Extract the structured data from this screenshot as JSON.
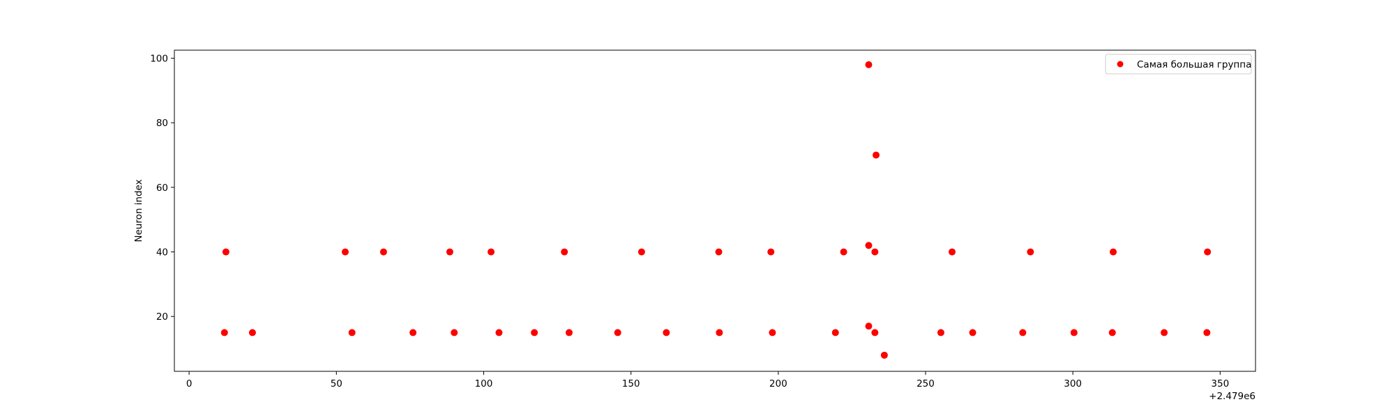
{
  "chart_data": {
    "type": "scatter",
    "title": "",
    "xlabel": "",
    "ylabel": "Neuron index",
    "x_offset_label": "+2.479e6",
    "xlim": [
      -5,
      362
    ],
    "ylim": [
      3,
      102.5
    ],
    "xticks": [
      0,
      50,
      100,
      150,
      200,
      250,
      300,
      350
    ],
    "yticks": [
      20,
      40,
      60,
      80,
      100
    ],
    "grid": false,
    "legend_position": "upper right",
    "series": [
      {
        "name": "Самая большая группа",
        "color": "#ff0000",
        "points": [
          {
            "x": 12,
            "y": 15
          },
          {
            "x": 12.5,
            "y": 40
          },
          {
            "x": 21.5,
            "y": 15
          },
          {
            "x": 53,
            "y": 40
          },
          {
            "x": 55.3,
            "y": 15
          },
          {
            "x": 66,
            "y": 40
          },
          {
            "x": 76,
            "y": 15
          },
          {
            "x": 88.5,
            "y": 40
          },
          {
            "x": 90,
            "y": 15
          },
          {
            "x": 102.5,
            "y": 40
          },
          {
            "x": 105.2,
            "y": 15
          },
          {
            "x": 117.2,
            "y": 15
          },
          {
            "x": 127.4,
            "y": 40
          },
          {
            "x": 129,
            "y": 15
          },
          {
            "x": 145.5,
            "y": 15
          },
          {
            "x": 153.6,
            "y": 40
          },
          {
            "x": 162,
            "y": 15
          },
          {
            "x": 179.8,
            "y": 40
          },
          {
            "x": 180,
            "y": 15
          },
          {
            "x": 197.5,
            "y": 40
          },
          {
            "x": 198,
            "y": 15
          },
          {
            "x": 219.4,
            "y": 15
          },
          {
            "x": 222.2,
            "y": 40
          },
          {
            "x": 230.7,
            "y": 98
          },
          {
            "x": 230.7,
            "y": 42
          },
          {
            "x": 230.7,
            "y": 17
          },
          {
            "x": 232.8,
            "y": 15
          },
          {
            "x": 232.8,
            "y": 40
          },
          {
            "x": 233.2,
            "y": 70
          },
          {
            "x": 236,
            "y": 8
          },
          {
            "x": 255.2,
            "y": 15
          },
          {
            "x": 259,
            "y": 40
          },
          {
            "x": 266,
            "y": 15
          },
          {
            "x": 283,
            "y": 15
          },
          {
            "x": 285.6,
            "y": 40
          },
          {
            "x": 300.4,
            "y": 15
          },
          {
            "x": 313.4,
            "y": 15
          },
          {
            "x": 313.7,
            "y": 40
          },
          {
            "x": 331,
            "y": 15
          },
          {
            "x": 345.5,
            "y": 15
          },
          {
            "x": 345.7,
            "y": 40
          }
        ]
      }
    ]
  }
}
